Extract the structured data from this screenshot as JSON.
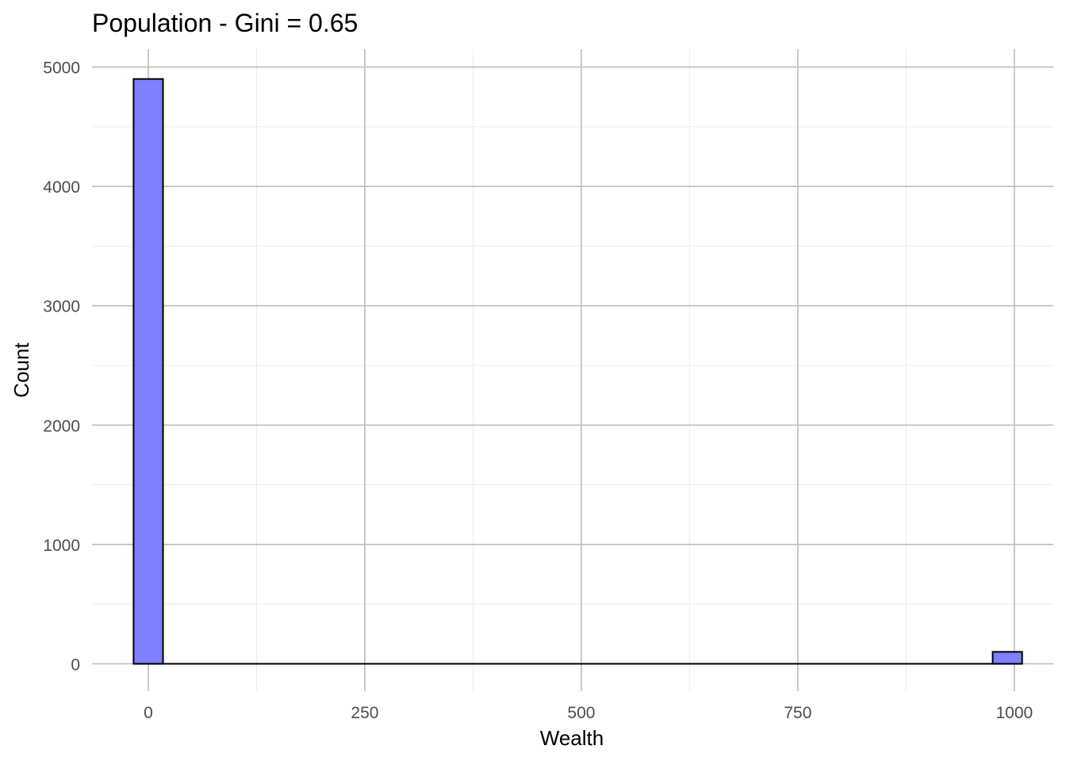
{
  "chart_data": {
    "type": "bar",
    "title": "Population - Gini = 0.65",
    "xlabel": "Wealth",
    "ylabel": "Count",
    "x_ticks": [
      0,
      250,
      500,
      750,
      1000
    ],
    "y_ticks": [
      0,
      1000,
      2000,
      3000,
      4000,
      5000
    ],
    "xlim": [
      -65,
      1045
    ],
    "ylim": [
      -230,
      5150
    ],
    "grid": true,
    "legend": "none",
    "bins": [
      {
        "start": -17,
        "end": 17,
        "count": 4900
      },
      {
        "start": 975,
        "end": 1009,
        "count": 100
      }
    ],
    "baseline": {
      "start": -17,
      "end": 1009
    },
    "colors": {
      "fill": "#7f7fff",
      "outline": "#000000"
    }
  }
}
